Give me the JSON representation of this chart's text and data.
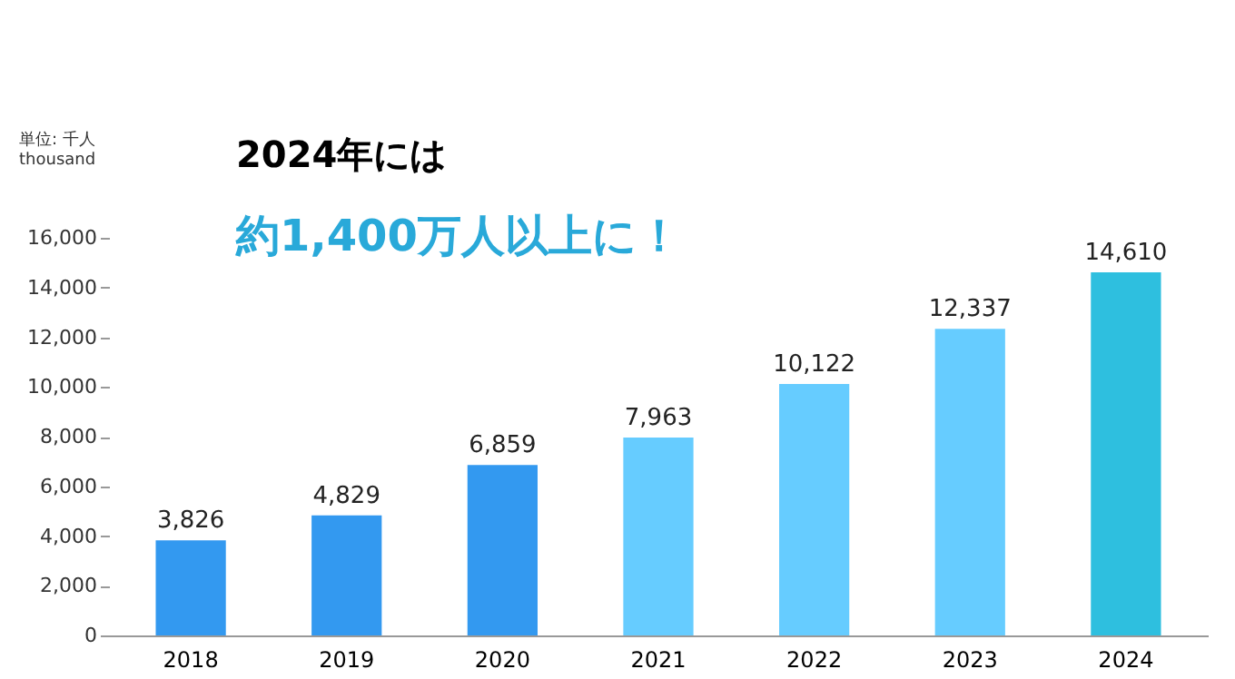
{
  "chart_data": {
    "type": "bar",
    "categories": [
      "2018",
      "2019",
      "2020",
      "2021",
      "2022",
      "2023",
      "2024"
    ],
    "values": [
      3826,
      4829,
      6859,
      7963,
      10122,
      12337,
      14610
    ],
    "value_labels": [
      "3,826",
      "4,829",
      "6,859",
      "7,963",
      "10,122",
      "12,337",
      "14,610"
    ],
    "colors": [
      "#3399f0",
      "#3399f0",
      "#3399f0",
      "#66ccff",
      "#66ccff",
      "#66ccff",
      "#2ebfdf"
    ],
    "ylabel": "単位: 千人\nthousand",
    "ylim": [
      0,
      16000
    ],
    "yticks": [
      0,
      {
        "value": 2000,
        "label": "2,000"
      },
      {
        "value": 4000,
        "label": "4,000"
      },
      {
        "value": 6000,
        "label": "6,000"
      },
      {
        "value": 8000,
        "label": "8,000"
      },
      {
        "value": 10000,
        "label": "10,000"
      },
      {
        "value": 12000,
        "label": "12,000"
      },
      {
        "value": 14000,
        "label": "14,000"
      },
      {
        "value": 16000,
        "label": "16,000"
      }
    ],
    "grid": false,
    "annotations": [
      "2024年には",
      "約1,400万人以上に！"
    ]
  }
}
